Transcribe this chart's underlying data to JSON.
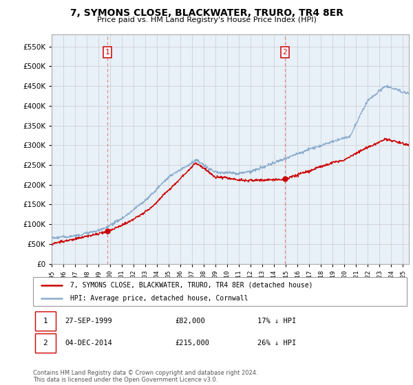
{
  "title": "7, SYMONS CLOSE, BLACKWATER, TRURO, TR4 8ER",
  "subtitle": "Price paid vs. HM Land Registry's House Price Index (HPI)",
  "legend_line1": "7, SYMONS CLOSE, BLACKWATER, TRURO, TR4 8ER (detached house)",
  "legend_line2": "HPI: Average price, detached house, Cornwall",
  "annotation1_date": "27-SEP-1999",
  "annotation1_price": "£82,000",
  "annotation1_hpi": "17% ↓ HPI",
  "annotation2_date": "04-DEC-2014",
  "annotation2_price": "£215,000",
  "annotation2_hpi": "26% ↓ HPI",
  "footer": "Contains HM Land Registry data © Crown copyright and database right 2024.\nThis data is licensed under the Open Government Licence v3.0.",
  "sale1_year": 1999.75,
  "sale1_value": 82000,
  "sale2_year": 2014.92,
  "sale2_value": 215000,
  "red_color": "#cc0000",
  "blue_color": "#88aacc",
  "dashed_color": "#dd8888",
  "plot_bg": "#e8f0f8",
  "ylim_min": 0,
  "ylim_max": 580000,
  "xlim_min": 1995.0,
  "xlim_max": 2025.5,
  "background_color": "#ffffff",
  "grid_color": "#cccccc"
}
